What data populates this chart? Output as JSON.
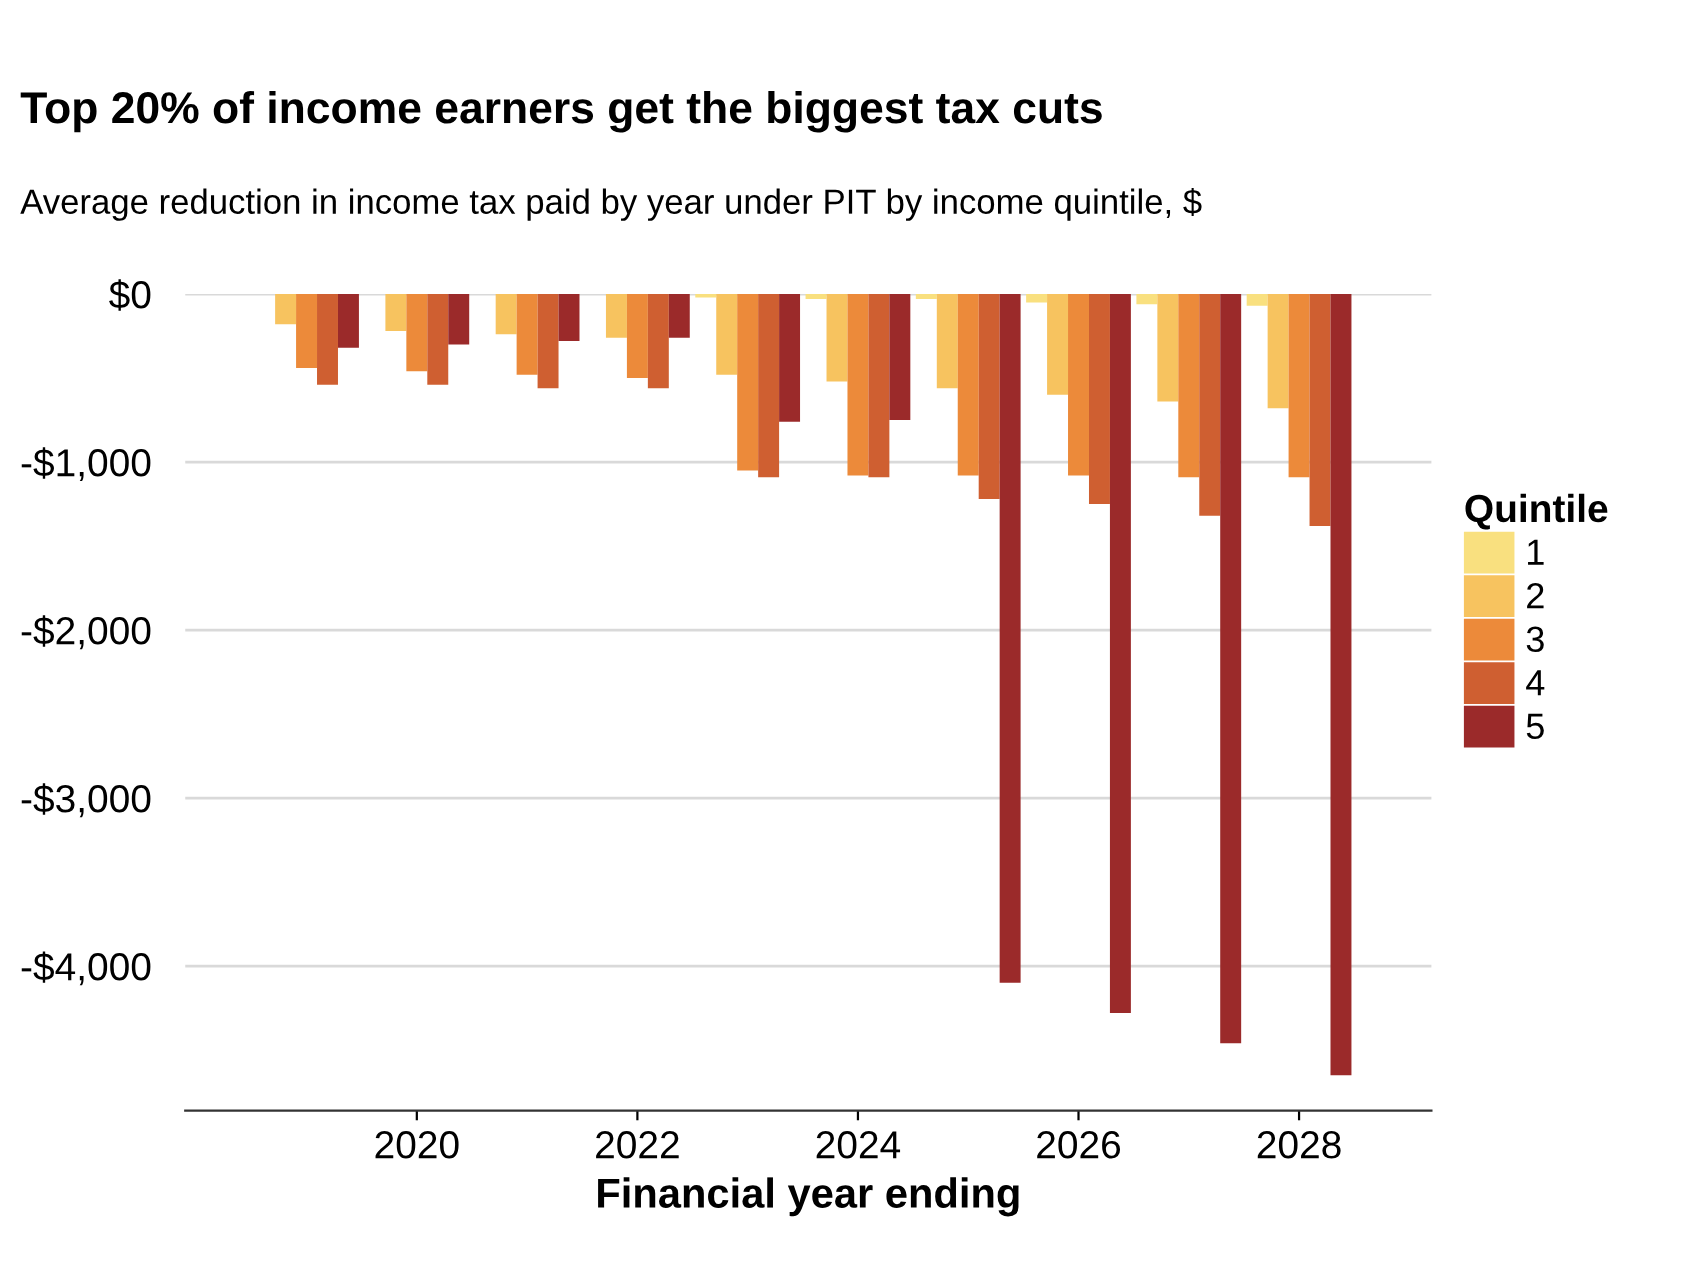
{
  "chart_data": {
    "type": "bar",
    "title": "Top 20% of income earners get the biggest tax cuts",
    "subtitle": "Average reduction in income tax paid by year under PIT by income quintile, $",
    "xlabel": "Financial year ending",
    "legend_title": "Quintile",
    "x": [
      2019,
      2020,
      2021,
      2022,
      2023,
      2024,
      2025,
      2026,
      2027,
      2028
    ],
    "series": [
      {
        "name": "1",
        "color": "#f9e07f",
        "values": [
          0,
          0,
          0,
          0,
          -20,
          -30,
          -30,
          -50,
          -60,
          -70
        ]
      },
      {
        "name": "2",
        "color": "#f7c35f",
        "values": [
          -180,
          -220,
          -240,
          -260,
          -480,
          -520,
          -560,
          -600,
          -640,
          -680
        ]
      },
      {
        "name": "3",
        "color": "#ec8a3a",
        "values": [
          -440,
          -460,
          -480,
          -500,
          -1050,
          -1080,
          -1080,
          -1080,
          -1090,
          -1090
        ]
      },
      {
        "name": "4",
        "color": "#cf5f31",
        "values": [
          -540,
          -540,
          -560,
          -560,
          -1090,
          -1090,
          -1220,
          -1250,
          -1320,
          -1380
        ]
      },
      {
        "name": "5",
        "color": "#9b2a2a",
        "values": [
          -320,
          -300,
          -280,
          -260,
          -760,
          -750,
          -4100,
          -4280,
          -4460,
          -4650
        ]
      }
    ],
    "xlim": [
      2017.9,
      2029.2
    ],
    "xticks": [
      2020,
      2022,
      2024,
      2026,
      2028
    ],
    "ylim": [
      -4860,
      0
    ],
    "yticks": [
      {
        "value": 0,
        "label": "$0"
      },
      {
        "value": -1000,
        "label": "-$1,000"
      },
      {
        "value": -2000,
        "label": "-$2,000"
      },
      {
        "value": -3000,
        "label": "-$3,000"
      },
      {
        "value": -4000,
        "label": "-$4,000"
      }
    ],
    "grid": "y",
    "legend": "right"
  }
}
